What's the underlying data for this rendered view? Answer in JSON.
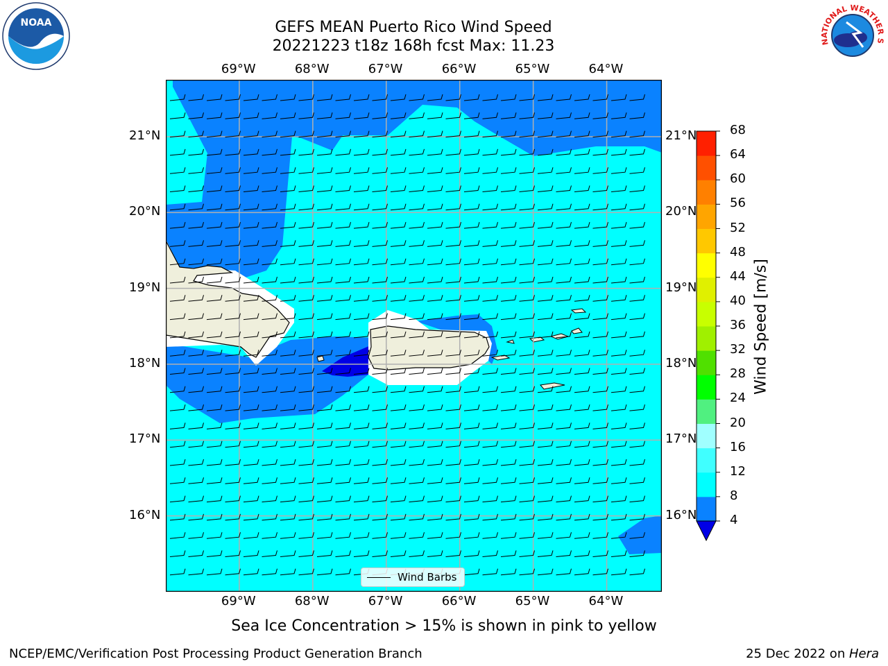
{
  "title": {
    "line1": "GEFS MEAN Puerto Rico Wind Speed",
    "line2": "20221223 t18z 168h fcst   Max: 11.23"
  },
  "logos": {
    "noaa_text": "NOAA",
    "nws_text": "NATIONAL WEATHER SERVICE"
  },
  "map": {
    "lon_range": [
      -70,
      -63.25
    ],
    "lat_range": [
      15.0,
      21.75
    ],
    "lon_ticks": [
      "69°W",
      "68°W",
      "67°W",
      "66°W",
      "65°W",
      "64°W"
    ],
    "lon_values": [
      -69,
      -68,
      -67,
      -66,
      -65,
      -64
    ],
    "lat_ticks": [
      "21°N",
      "20°N",
      "19°N",
      "18°N",
      "17°N",
      "16°N"
    ],
    "lat_values": [
      21,
      20,
      19,
      18,
      17,
      16
    ],
    "ocean_color": "#00ffff",
    "moderate_wind_color": "#0a82ff",
    "strong_wind_color": "#0000e6",
    "land_color": "#efefdc",
    "legend_label": "Wind Barbs"
  },
  "colorbar": {
    "title": "Wind Speed [m/s]",
    "labels": [
      "4",
      "8",
      "12",
      "16",
      "20",
      "24",
      "28",
      "32",
      "36",
      "40",
      "44",
      "48",
      "52",
      "56",
      "60",
      "64",
      "68"
    ],
    "colors": [
      "#0a82ff",
      "#00ffff",
      "#40ffff",
      "#a0ffff",
      "#50f080",
      "#00ff00",
      "#50e000",
      "#a0f000",
      "#c8ff00",
      "#e0f000",
      "#ffff00",
      "#ffc800",
      "#ffa500",
      "#ff8000",
      "#ff5000",
      "#ff2000"
    ],
    "under_color": "#0000e6"
  },
  "note": "Sea Ice Concentration > 15% is shown in pink to yellow",
  "footer": {
    "left": "NCEP/EMC/Verification Post Processing Product Generation Branch",
    "date": "25 Dec 2022 on ",
    "machine": "Hera"
  }
}
